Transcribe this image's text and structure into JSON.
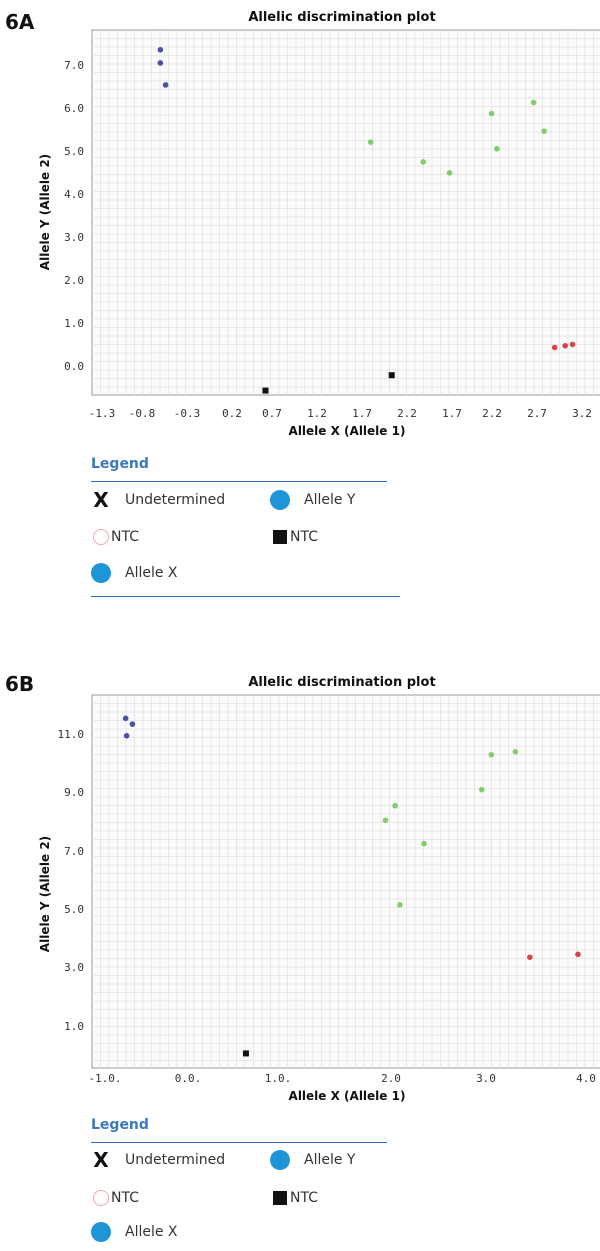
{
  "colors": {
    "allele_x": "#d9444a",
    "allele_y": "#4a4fa8",
    "heterozygous": "#7fd06a",
    "ntc": "#111111",
    "legend_accent": "#3b78c2",
    "legend_dot": "#1e95d6"
  },
  "panels": [
    {
      "label": "6A",
      "legend": {
        "title": "Legend",
        "items": [
          {
            "symbol": "x-icon",
            "label": "Undetermined"
          },
          {
            "symbol": "blue-circle-icon",
            "label": "Allele Y"
          },
          {
            "symbol": "pink-ring-icon",
            "label": "NTC"
          },
          {
            "symbol": "black-square-icon",
            "label": "NTC"
          },
          {
            "symbol": "blue-circle-icon",
            "label": "Allele X"
          }
        ]
      }
    },
    {
      "label": "6B",
      "legend": {
        "title": "Legend",
        "items": [
          {
            "symbol": "x-icon",
            "label": "Undetermined"
          },
          {
            "symbol": "blue-circle-icon",
            "label": "Allele Y"
          },
          {
            "symbol": "pink-ring-icon",
            "label": "NTC"
          },
          {
            "symbol": "black-square-icon",
            "label": "NTC"
          },
          {
            "symbol": "blue-circle-icon",
            "label": "Allele X"
          }
        ]
      }
    }
  ],
  "chart_data": [
    {
      "type": "scatter",
      "title": "Allelic discrimination plot",
      "xlabel": "Allele X (Allele 1)",
      "ylabel": "Allele Y (Allele 2)",
      "xticks": [
        "-1.3",
        "-0.8",
        "-0.3",
        "0.2",
        "0.7",
        "1.2",
        "1.7",
        "2.2",
        "1.7",
        "2.2",
        "2.7",
        "3.2"
      ],
      "yticks": [
        "7.0",
        "6.0",
        "5.0",
        "4.0",
        "3.0",
        "2.0",
        "1.0",
        "0.0"
      ],
      "xlim": [
        -1.55,
        3.3
      ],
      "ylim": [
        -0.6,
        7.7
      ],
      "grid": true,
      "series": [
        {
          "group": "allele_y",
          "points": [
            [
              -0.9,
              7.25
            ],
            [
              -0.9,
              6.95
            ],
            [
              -0.85,
              6.45
            ]
          ]
        },
        {
          "group": "heterozygous",
          "points": [
            [
              1.1,
              5.15
            ],
            [
              1.6,
              4.7
            ],
            [
              1.85,
              4.45
            ],
            [
              2.25,
              5.8
            ],
            [
              2.3,
              5.0
            ],
            [
              2.65,
              6.05
            ],
            [
              2.75,
              5.4
            ]
          ]
        },
        {
          "group": "allele_x",
          "points": [
            [
              2.85,
              0.48
            ],
            [
              2.95,
              0.52
            ],
            [
              3.02,
              0.55
            ]
          ]
        },
        {
          "group": "ntc",
          "points": [
            [
              0.1,
              -0.5
            ],
            [
              1.3,
              -0.15
            ]
          ]
        }
      ]
    },
    {
      "type": "scatter",
      "title": "Allelic discrimination plot",
      "xlabel": "Allele X (Allele 1)",
      "ylabel": "Allele Y (Allele 2)",
      "xticks": [
        "-1.0.",
        "0.0.",
        "1.0.",
        "2.0",
        "3.0",
        "4.0"
      ],
      "yticks": [
        "11.0",
        "9.0",
        "7.0",
        "5.0",
        "3.0",
        "1.0"
      ],
      "xlim": [
        -1.1,
        4.2
      ],
      "ylim": [
        -0.5,
        12.3
      ],
      "grid": true,
      "series": [
        {
          "group": "allele_y",
          "points": [
            [
              -0.75,
              11.5
            ],
            [
              -0.68,
              11.3
            ],
            [
              -0.74,
              10.9
            ]
          ]
        },
        {
          "group": "heterozygous",
          "points": [
            [
              1.95,
              8.0
            ],
            [
              2.05,
              8.5
            ],
            [
              2.1,
              5.1
            ],
            [
              2.35,
              7.2
            ],
            [
              2.95,
              9.05
            ],
            [
              3.05,
              10.25
            ],
            [
              3.3,
              10.35
            ]
          ]
        },
        {
          "group": "allele_x",
          "points": [
            [
              3.45,
              3.3
            ],
            [
              3.95,
              3.4
            ]
          ]
        },
        {
          "group": "ntc",
          "points": [
            [
              0.5,
              0.0
            ]
          ]
        }
      ]
    }
  ]
}
